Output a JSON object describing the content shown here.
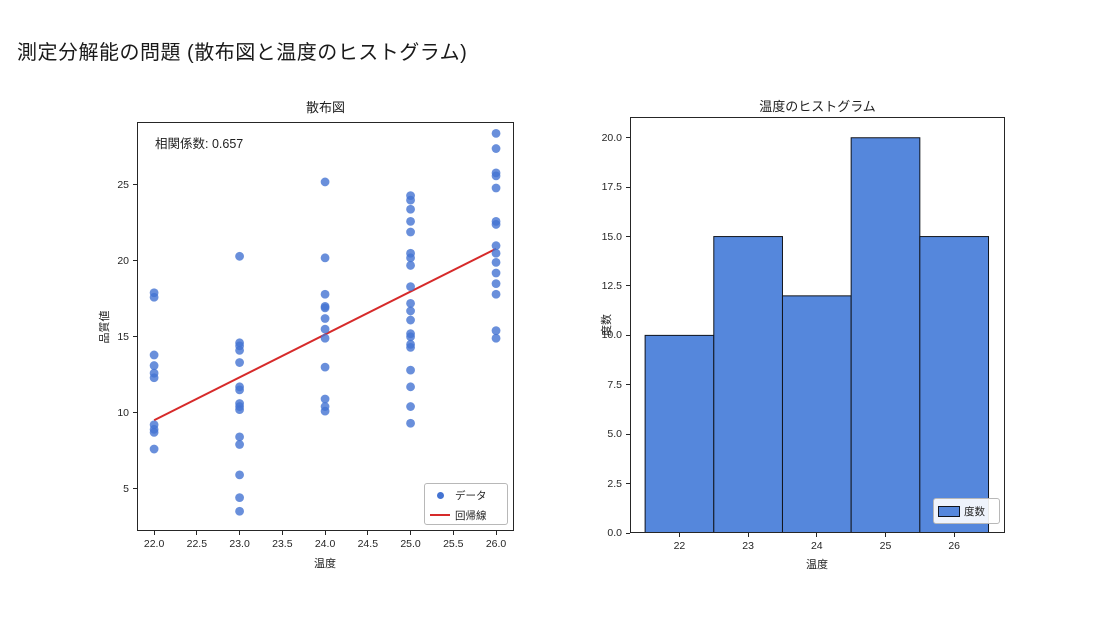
{
  "page": {
    "title": "測定分解能の問題 (散布図と温度のヒストグラム)"
  },
  "colors": {
    "point": "#4473D2",
    "regression": "#D62A2A",
    "bar_fill": "#5587DC",
    "bar_edge": "#10141C",
    "axis": "#262626"
  },
  "chart_data": [
    {
      "type": "scatter",
      "title": "散布図",
      "xlabel": "温度",
      "ylabel": "品質値",
      "annotation": "相関係数: 0.657",
      "legend_position": "lower right",
      "legend_items": [
        {
          "label": "データ",
          "marker": "point"
        },
        {
          "label": "回帰線",
          "marker": "line"
        }
      ],
      "xlim": [
        21.8,
        26.21
      ],
      "ylim": [
        2.2,
        29.15
      ],
      "xticks": [
        22,
        22.5,
        23,
        23.5,
        24,
        24.5,
        25,
        25.5,
        26
      ],
      "xtick_labels": [
        "22.0",
        "22.5",
        "23.0",
        "23.5",
        "24.0",
        "24.5",
        "25.0",
        "25.5",
        "26.0"
      ],
      "yticks": [
        5,
        10,
        15,
        20,
        25
      ],
      "ytick_labels": [
        "5",
        "10",
        "15",
        "20",
        "25"
      ],
      "points": [
        [
          22,
          17.9
        ],
        [
          22,
          17.6
        ],
        [
          22,
          13.8
        ],
        [
          22,
          13.1
        ],
        [
          22,
          12.6
        ],
        [
          22,
          12.3
        ],
        [
          22,
          9.2
        ],
        [
          22,
          8.9
        ],
        [
          22,
          8.7
        ],
        [
          22,
          7.6
        ],
        [
          23,
          20.3
        ],
        [
          23,
          14.6
        ],
        [
          23,
          14.4
        ],
        [
          23,
          14.1
        ],
        [
          23,
          13.3
        ],
        [
          23,
          11.7
        ],
        [
          23,
          11.5
        ],
        [
          23,
          10.6
        ],
        [
          23,
          10.4
        ],
        [
          23,
          10.2
        ],
        [
          23,
          8.4
        ],
        [
          23,
          7.9
        ],
        [
          23,
          5.9
        ],
        [
          23,
          4.4
        ],
        [
          23,
          3.5
        ],
        [
          24,
          25.2
        ],
        [
          24,
          20.2
        ],
        [
          24,
          17.8
        ],
        [
          24,
          17.0
        ],
        [
          24,
          16.9
        ],
        [
          24,
          16.2
        ],
        [
          24,
          15.5
        ],
        [
          24,
          14.9
        ],
        [
          24,
          13.0
        ],
        [
          24,
          10.9
        ],
        [
          24,
          10.4
        ],
        [
          24,
          10.1
        ],
        [
          25,
          24.3
        ],
        [
          25,
          24.0
        ],
        [
          25,
          23.4
        ],
        [
          25,
          22.6
        ],
        [
          25,
          21.9
        ],
        [
          25,
          20.5
        ],
        [
          25,
          20.2
        ],
        [
          25,
          19.7
        ],
        [
          25,
          18.3
        ],
        [
          25,
          17.2
        ],
        [
          25,
          16.7
        ],
        [
          25,
          16.1
        ],
        [
          25,
          15.2
        ],
        [
          25,
          15.0
        ],
        [
          25,
          14.5
        ],
        [
          25,
          14.3
        ],
        [
          25,
          12.8
        ],
        [
          25,
          11.7
        ],
        [
          25,
          10.4
        ],
        [
          25,
          9.3
        ],
        [
          26,
          28.4
        ],
        [
          26,
          27.4
        ],
        [
          26,
          25.8
        ],
        [
          26,
          25.6
        ],
        [
          26,
          24.8
        ],
        [
          26,
          22.6
        ],
        [
          26,
          22.4
        ],
        [
          26,
          21.0
        ],
        [
          26,
          20.5
        ],
        [
          26,
          19.9
        ],
        [
          26,
          19.2
        ],
        [
          26,
          18.5
        ],
        [
          26,
          17.8
        ],
        [
          26,
          15.4
        ],
        [
          26,
          14.9
        ]
      ],
      "regression_line": {
        "x1": 22,
        "y1": 9.5,
        "x2": 26,
        "y2": 20.8
      }
    },
    {
      "type": "bar",
      "title": "温度のヒストグラム",
      "xlabel": "温度",
      "ylabel": "度数",
      "legend_position": "lower right",
      "legend_items": [
        {
          "label": "度数",
          "marker": "swatch"
        }
      ],
      "categories": [
        22,
        23,
        24,
        25,
        26
      ],
      "values": [
        10,
        15,
        12,
        20,
        15
      ],
      "bin_edges": [
        21.5,
        22.5,
        23.5,
        24.5,
        25.5,
        26.5
      ],
      "xlim": [
        21.28,
        26.74
      ],
      "ylim": [
        0,
        21.05
      ],
      "xticks": [
        22,
        23,
        24,
        25,
        26
      ],
      "xtick_labels": [
        "22",
        "23",
        "24",
        "25",
        "26"
      ],
      "yticks": [
        0,
        2.5,
        5,
        7.5,
        10,
        12.5,
        15,
        17.5,
        20
      ],
      "ytick_labels": [
        "0.0",
        "2.5",
        "5.0",
        "7.5",
        "10.0",
        "12.5",
        "15.0",
        "17.5",
        "20.0"
      ]
    }
  ]
}
